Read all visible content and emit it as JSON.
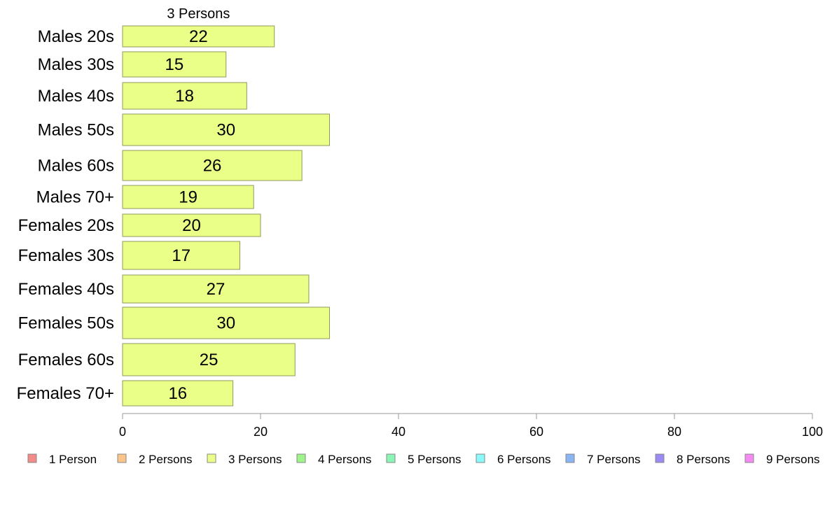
{
  "chart_data": {
    "type": "bar",
    "orientation": "horizontal",
    "stacked": true,
    "categories": [
      "Males 20s",
      "Males 30s",
      "Males 40s",
      "Males 50s",
      "Males 60s",
      "Males 70+",
      "Females 20s",
      "Females 30s",
      "Females 40s",
      "Females 50s",
      "Females 60s",
      "Females 70+"
    ],
    "series": [
      {
        "name": "3 Persons",
        "color": "#eaff88",
        "values": [
          22,
          15,
          18,
          30,
          26,
          19,
          20,
          17,
          27,
          30,
          25,
          16
        ]
      }
    ],
    "segment_label": "3 Persons",
    "xlim": [
      0,
      100
    ],
    "xticks": [
      0,
      20,
      40,
      60,
      80,
      100
    ],
    "grid": false,
    "legend": {
      "placement": "bottom",
      "items": [
        {
          "label": "1 Person",
          "color": "#f58a8a"
        },
        {
          "label": "2 Persons",
          "color": "#fbc58a"
        },
        {
          "label": "3 Persons",
          "color": "#eaff88"
        },
        {
          "label": "4 Persons",
          "color": "#9ef58a"
        },
        {
          "label": "5 Persons",
          "color": "#8af5b5"
        },
        {
          "label": "6 Persons",
          "color": "#8afafa"
        },
        {
          "label": "7 Persons",
          "color": "#8ab5f5"
        },
        {
          "label": "8 Persons",
          "color": "#9a8af5"
        },
        {
          "label": "9 Persons",
          "color": "#f58af5"
        }
      ]
    }
  }
}
